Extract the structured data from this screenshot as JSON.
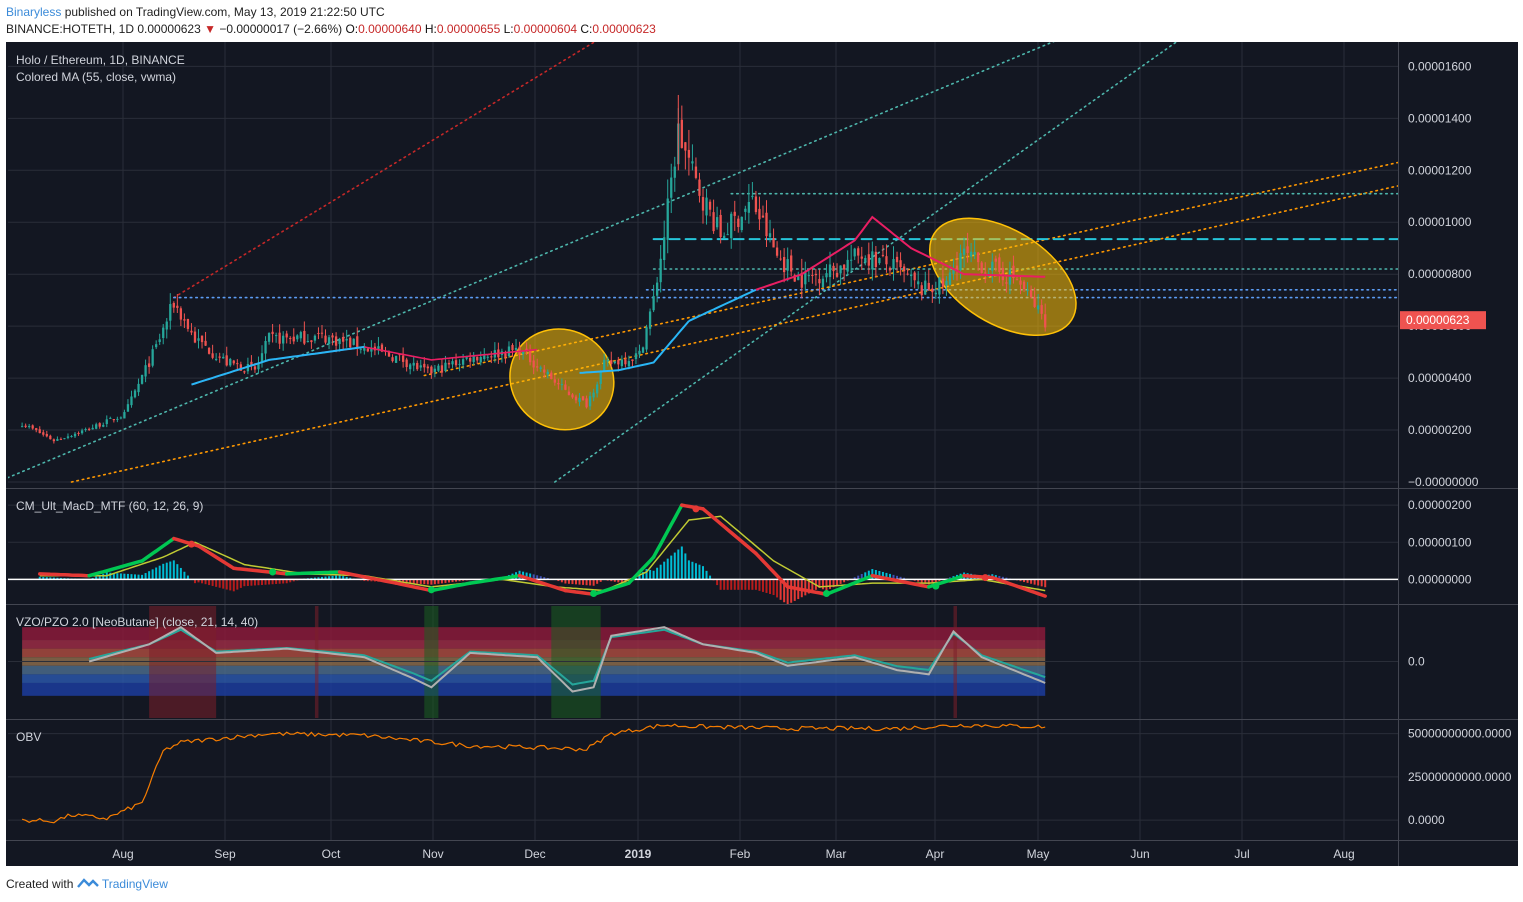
{
  "header": {
    "author": "Binaryless",
    "published_text": "published on TradingView.com, May 13, 2019 21:22:50 UTC",
    "symbol_line": "BINANCE:HOTETH, 1D",
    "last": "0.00000623",
    "change_arrow": "▼",
    "change": "−0.00000017 (−2.66%)",
    "o_label": "O:",
    "o_value": "0.00000640",
    "h_label": "H:",
    "h_value": "0.00000655",
    "l_label": "L:",
    "l_value": "0.00000604",
    "c_label": "C:",
    "c_value": "0.00000623"
  },
  "footer": {
    "created_with": "Created with",
    "brand": "TradingView"
  },
  "colors": {
    "background": "#131722",
    "grid": "#2a2e39",
    "up": "#26a69a",
    "down": "#ef5350",
    "ma_up": "#29b6f6",
    "ma_down": "#e91e63",
    "price_tag": "#ef5350",
    "trend_orange": "#ff9800",
    "trend_teal": "#4db6ac",
    "trend_red": "#c62828",
    "level_cyan": "#26c6da",
    "level_blue": "#5c9df5",
    "ellipse_fill": "#ffc107",
    "obv": "#f57c00",
    "macd_green": "#00c853",
    "macd_red": "#e53935",
    "signal_yellow": "#c0ca33",
    "vzo_line": "#b0b0b0"
  },
  "chart_data": [
    {
      "type": "candlestick",
      "title": "Holo / Ethereum, 1D, BINANCE",
      "indicator": "Colored MA (55, close, vwma)",
      "x_ticks": [
        "Aug",
        "Sep",
        "Oct",
        "Nov",
        "Dec",
        "2019",
        "Feb",
        "Mar",
        "Apr",
        "May",
        "Jun",
        "Jul",
        "Aug"
      ],
      "x_range": [
        "2018-07-23",
        "2019-08-21"
      ],
      "y_ticks": [
        "0.00001600",
        "0.00001400",
        "0.00001200",
        "0.00001000",
        "0.00000800",
        "0.00000600",
        "0.00000400",
        "0.00000200",
        "−0.00000000"
      ],
      "ylim": [
        0.0,
        1.64e-05
      ],
      "last_price_label": "0.00000623",
      "last_price": 6.23e-06,
      "close_keypoints": [
        [
          "2018-07-27",
          2.25e-06
        ],
        [
          "2018-08-05",
          1.6e-06
        ],
        [
          "2018-08-15",
          2.05e-06
        ],
        [
          "2018-08-25",
          2.6e-06
        ],
        [
          "2018-09-03",
          5.2e-06
        ],
        [
          "2018-09-08",
          6.9e-06
        ],
        [
          "2018-09-14",
          5.5e-06
        ],
        [
          "2018-09-23",
          4.6e-06
        ],
        [
          "2018-10-01",
          4.3e-06
        ],
        [
          "2018-10-05",
          5.5e-06
        ],
        [
          "2018-10-20",
          5.6e-06
        ],
        [
          "2018-11-01",
          5.2e-06
        ],
        [
          "2018-11-12",
          4.7e-06
        ],
        [
          "2018-11-19",
          4.2e-06
        ],
        [
          "2018-12-01",
          4.8e-06
        ],
        [
          "2018-12-15",
          5.1e-06
        ],
        [
          "2018-12-28",
          3.5e-06
        ],
        [
          "2019-01-03",
          3e-06
        ],
        [
          "2019-01-08",
          4.5e-06
        ],
        [
          "2019-01-18",
          4.9e-06
        ],
        [
          "2019-01-22",
          7e-06
        ],
        [
          "2019-01-25",
          9.5e-06
        ],
        [
          "2019-01-29",
          1.35e-05
        ],
        [
          "2019-02-03",
          1.15e-05
        ],
        [
          "2019-02-10",
          9.5e-06
        ],
        [
          "2019-02-19",
          1.08e-05
        ],
        [
          "2019-02-26",
          8.7e-06
        ],
        [
          "2019-03-05",
          7.8e-06
        ],
        [
          "2019-03-15",
          8.2e-06
        ],
        [
          "2019-03-22",
          8.8e-06
        ],
        [
          "2019-04-01",
          8.2e-06
        ],
        [
          "2019-04-08",
          7.4e-06
        ],
        [
          "2019-04-15",
          7.6e-06
        ],
        [
          "2019-04-19",
          8.8e-06
        ],
        [
          "2019-04-26",
          8.3e-06
        ],
        [
          "2019-05-05",
          7.8e-06
        ],
        [
          "2019-05-10",
          6.8e-06
        ],
        [
          "2019-05-13",
          6.23e-06
        ]
      ],
      "vwma55_keypoints": [
        [
          "2018-09-13",
          3.75e-06
        ],
        [
          "2018-10-05",
          4.7e-06
        ],
        [
          "2018-11-01",
          5.2e-06
        ],
        [
          "2018-11-20",
          4.7e-06
        ],
        [
          "2018-12-20",
          5.1e-06
        ],
        [
          "2019-01-01",
          4.2e-06
        ],
        [
          "2019-01-12",
          4.3e-06
        ],
        [
          "2019-01-22",
          4.6e-06
        ],
        [
          "2019-02-01",
          6.2e-06
        ],
        [
          "2019-02-20",
          7.4e-06
        ],
        [
          "2019-03-05",
          8e-06
        ],
        [
          "2019-03-20",
          9.3e-06
        ],
        [
          "2019-03-25",
          1.02e-05
        ],
        [
          "2019-04-05",
          9e-06
        ],
        [
          "2019-04-20",
          8e-06
        ],
        [
          "2019-05-13",
          7.9e-06
        ]
      ],
      "horizontal_levels": [
        {
          "style": "dashed",
          "color": "level_cyan",
          "value": 9.35e-06,
          "from": "2019-01-22"
        },
        {
          "style": "dotted",
          "color": "trend_teal",
          "value": 1.11e-05,
          "from": "2019-02-13"
        },
        {
          "style": "dotted",
          "color": "level_blue",
          "value": 7.1e-06,
          "from": "2018-09-08"
        },
        {
          "style": "dotted",
          "color": "level_blue",
          "value": 7.4e-06,
          "from": "2019-01-20"
        },
        {
          "style": "dotted",
          "color": "trend_teal",
          "value": 8.2e-06,
          "from": "2019-01-22"
        }
      ],
      "trend_lines": [
        {
          "color": "trend_teal",
          "from": [
            "2018-07-20",
            0.0
          ],
          "to": [
            "2019-05-25",
            1.75e-05
          ]
        },
        {
          "color": "trend_red",
          "from": [
            "2018-09-08",
            7.1e-06
          ],
          "to": [
            "2019-01-12",
            1.75e-05
          ]
        },
        {
          "color": "trend_teal",
          "from": [
            "2018-12-25",
            0.0
          ],
          "to": [
            "2019-06-25",
            1.75e-05
          ]
        },
        {
          "color": "trend_orange",
          "from": [
            "2018-08-10",
            0.0
          ],
          "to": [
            "2019-08-21",
            1.14e-05
          ]
        },
        {
          "color": "trend_orange",
          "from": [
            "2018-11-18",
            4.1e-06
          ],
          "to": [
            "2019-08-21",
            1.23e-05
          ]
        }
      ],
      "ellipses": [
        {
          "center": [
            "2018-12-27",
            3.95e-06
          ],
          "rx_days": 15,
          "ry": 1.9e-06,
          "tilt": 32
        },
        {
          "center": [
            "2019-05-01",
            7.9e-06
          ],
          "rx_days": 23,
          "ry": 1.8e-06,
          "tilt": 32
        }
      ]
    },
    {
      "type": "line",
      "title": "CM_Ult_MacD_MTF (60, 12, 26, 9)",
      "y_ticks": [
        "0.00000200",
        "0.00000100",
        "0.00000000"
      ],
      "ylim": [
        -5e-07,
        2.3e-06
      ],
      "macd_keypoints": [
        [
          "2018-08-01",
          1.5e-07
        ],
        [
          "2018-08-15",
          1e-07
        ],
        [
          "2018-08-30",
          5e-07
        ],
        [
          "2018-09-08",
          1.1e-06
        ],
        [
          "2018-09-15",
          9e-07
        ],
        [
          "2018-09-25",
          3e-07
        ],
        [
          "2018-10-10",
          1.5e-07
        ],
        [
          "2018-10-25",
          2e-07
        ],
        [
          "2018-11-10",
          -1e-07
        ],
        [
          "2018-11-20",
          -3e-07
        ],
        [
          "2018-12-01",
          -1e-07
        ],
        [
          "2018-12-15",
          1e-07
        ],
        [
          "2018-12-28",
          -3e-07
        ],
        [
          "2019-01-05",
          -4e-07
        ],
        [
          "2019-01-15",
          -1e-07
        ],
        [
          "2019-01-22",
          6e-07
        ],
        [
          "2019-01-30",
          2e-06
        ],
        [
          "2019-02-05",
          1.9e-06
        ],
        [
          "2019-02-20",
          7e-07
        ],
        [
          "2019-03-01",
          -2e-07
        ],
        [
          "2019-03-12",
          -4e-07
        ],
        [
          "2019-03-25",
          1e-07
        ],
        [
          "2019-04-10",
          -2e-07
        ],
        [
          "2019-04-20",
          1e-07
        ],
        [
          "2019-04-28",
          5e-08
        ],
        [
          "2019-05-13",
          -4.5e-07
        ]
      ],
      "signal_keypoints": [
        [
          "2018-08-01",
          1e-07
        ],
        [
          "2018-08-20",
          1e-07
        ],
        [
          "2018-09-05",
          6e-07
        ],
        [
          "2018-09-14",
          1e-06
        ],
        [
          "2018-09-28",
          4e-07
        ],
        [
          "2018-10-15",
          1.5e-07
        ],
        [
          "2018-11-01",
          1e-07
        ],
        [
          "2018-11-20",
          -2e-07
        ],
        [
          "2018-12-10",
          0.0
        ],
        [
          "2018-12-25",
          -2e-07
        ],
        [
          "2019-01-08",
          -3e-07
        ],
        [
          "2019-01-20",
          2e-07
        ],
        [
          "2019-02-01",
          1.6e-06
        ],
        [
          "2019-02-10",
          1.7e-06
        ],
        [
          "2019-02-25",
          5e-07
        ],
        [
          "2019-03-10",
          -2e-07
        ],
        [
          "2019-03-25",
          -1e-07
        ],
        [
          "2019-04-10",
          -1e-07
        ],
        [
          "2019-04-25",
          0.0
        ],
        [
          "2019-05-13",
          -3e-07
        ]
      ]
    },
    {
      "type": "line",
      "title": "VZO/PZO 2.0 [NeoButane] (close, 21, 14, 40)",
      "y_ticks": [
        "0.0"
      ],
      "ylim": [
        -60,
        60
      ],
      "zones": [
        40,
        25,
        15,
        5,
        -5,
        -15,
        -25,
        -40
      ],
      "vzo_keypoints": [
        [
          "2018-08-15",
          0
        ],
        [
          "2018-09-01",
          20
        ],
        [
          "2018-09-10",
          40
        ],
        [
          "2018-09-20",
          10
        ],
        [
          "2018-10-10",
          15
        ],
        [
          "2018-11-01",
          5
        ],
        [
          "2018-11-15",
          -20
        ],
        [
          "2018-11-20",
          -30
        ],
        [
          "2018-12-01",
          10
        ],
        [
          "2018-12-20",
          5
        ],
        [
          "2018-12-30",
          -35
        ],
        [
          "2019-01-05",
          -30
        ],
        [
          "2019-01-10",
          30
        ],
        [
          "2019-01-25",
          40
        ],
        [
          "2019-02-05",
          20
        ],
        [
          "2019-02-20",
          10
        ],
        [
          "2019-03-01",
          -5
        ],
        [
          "2019-03-20",
          5
        ],
        [
          "2019-04-01",
          -10
        ],
        [
          "2019-04-10",
          -15
        ],
        [
          "2019-04-17",
          35
        ],
        [
          "2019-04-25",
          5
        ],
        [
          "2019-05-13",
          -25
        ]
      ]
    },
    {
      "type": "line",
      "title": "OBV",
      "y_ticks": [
        "50000000000.0000",
        "25000000000.0000",
        "0.0000"
      ],
      "ylim": [
        -8000000000,
        55000000000
      ],
      "obv_keypoints": [
        [
          "2018-07-27",
          0
        ],
        [
          "2018-08-05",
          -500000000
        ],
        [
          "2018-08-10",
          3000000000
        ],
        [
          "2018-08-20",
          1000000000
        ],
        [
          "2018-08-30",
          10000000000
        ],
        [
          "2018-09-05",
          40000000000
        ],
        [
          "2018-09-10",
          45000000000
        ],
        [
          "2018-09-20",
          47000000000
        ],
        [
          "2018-10-05",
          50000000000
        ],
        [
          "2018-11-01",
          49000000000
        ],
        [
          "2018-12-01",
          43000000000
        ],
        [
          "2018-12-20",
          42000000000
        ],
        [
          "2019-01-03",
          41000000000
        ],
        [
          "2019-01-10",
          50000000000
        ],
        [
          "2019-01-25",
          55000000000
        ],
        [
          "2019-02-05",
          54000000000
        ],
        [
          "2019-03-01",
          53000000000
        ],
        [
          "2019-04-01",
          53000000000
        ],
        [
          "2019-04-20",
          55000000000
        ],
        [
          "2019-05-13",
          54000000000
        ]
      ]
    }
  ]
}
